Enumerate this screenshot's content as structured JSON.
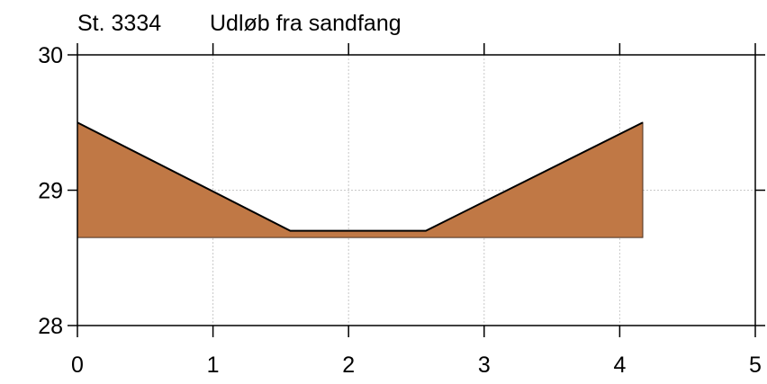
{
  "chart_data": {
    "type": "area",
    "title_station": "St. 3334",
    "title_name": "Udløb fra sandfang",
    "xlabel": "",
    "ylabel": "",
    "xlim": [
      0,
      5
    ],
    "ylim": [
      28,
      30
    ],
    "x_ticks": [
      0,
      1,
      2,
      3,
      4,
      5
    ],
    "y_ticks": [
      28,
      29,
      30
    ],
    "x_tick_labels": [
      "0",
      "1",
      "2",
      "3",
      "4",
      "5"
    ],
    "y_tick_labels": [
      "28",
      "29",
      "30"
    ],
    "grid": true,
    "series": [
      {
        "x": [
          0,
          1.57,
          2.57,
          4.17
        ],
        "y": [
          29.5,
          28.7,
          28.7,
          29.5
        ]
      }
    ],
    "fill_base": 28.65,
    "fill_color": "#c07845",
    "line_color": "#000000",
    "grid_color": "#c8c8c8"
  }
}
